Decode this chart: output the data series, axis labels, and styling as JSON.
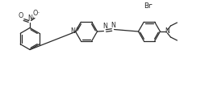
{
  "bg_color": "#ffffff",
  "line_color": "#2a2a2a",
  "line_width": 0.9,
  "font_size": 5.8,
  "fig_width": 2.64,
  "fig_height": 1.09,
  "dpi": 100,
  "xlim": [
    0,
    264
  ],
  "ylim": [
    0,
    109
  ]
}
